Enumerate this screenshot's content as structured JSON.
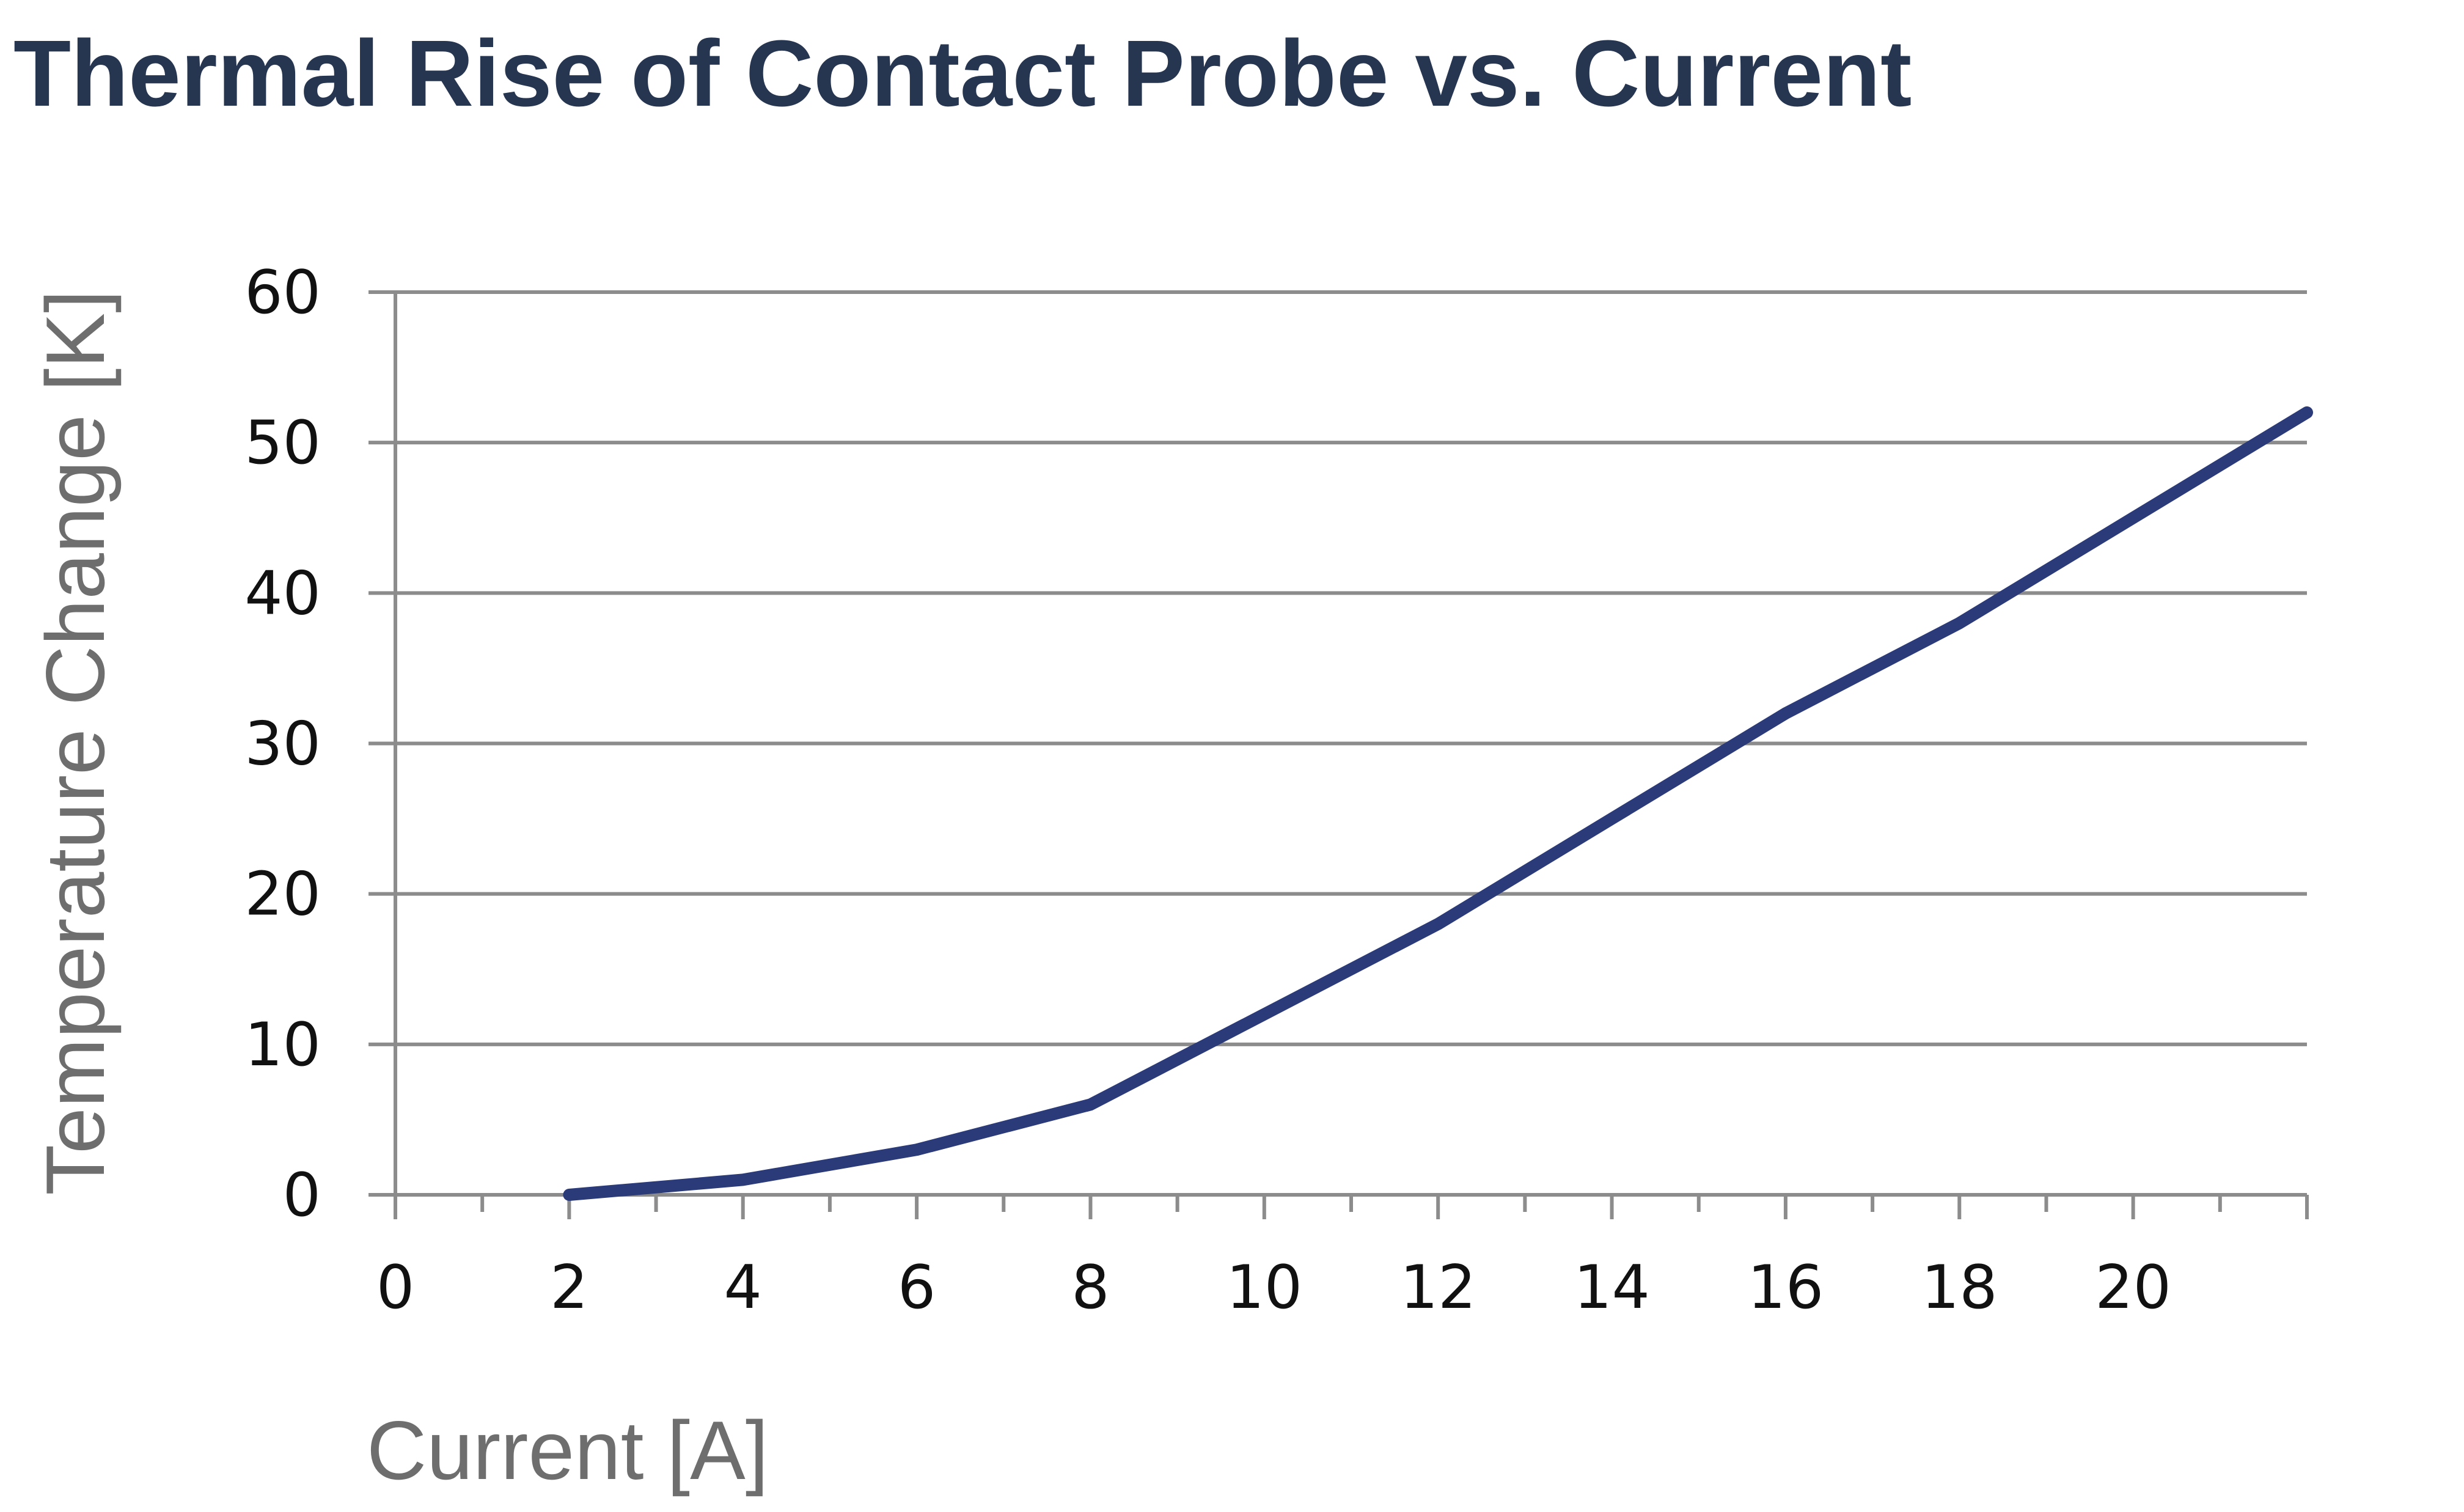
{
  "chart_data": {
    "type": "line",
    "title": "Thermal Rise of Contact Probe vs. Current",
    "xlabel": "Current [A]",
    "ylabel": "Temperature Change [K]",
    "xlim": [
      0,
      22
    ],
    "ylim": [
      0,
      60
    ],
    "x_ticks": [
      0,
      2,
      4,
      6,
      8,
      10,
      12,
      14,
      16,
      18,
      20
    ],
    "y_ticks": [
      0,
      10,
      20,
      30,
      40,
      50,
      60
    ],
    "grid": "horizontal",
    "legend": "none",
    "series": [
      {
        "color": "#2b3a78",
        "x": [
          2,
          4,
          6,
          8,
          10,
          12,
          14,
          16,
          18,
          20,
          22
        ],
        "y": [
          0,
          1,
          3,
          6,
          12,
          18,
          25,
          32,
          38,
          45,
          52
        ]
      }
    ]
  }
}
